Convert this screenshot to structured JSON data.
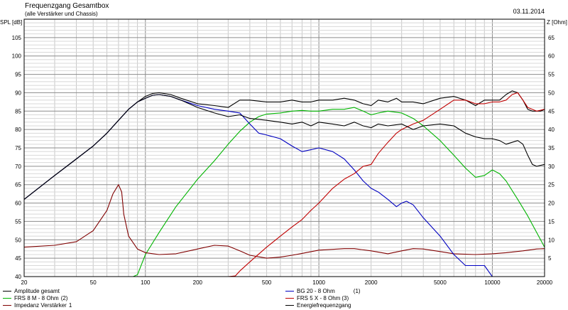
{
  "header": {
    "title": "Frequenzgang Gesamtbox",
    "subtitle": "(alle Verstärker und Chassis)",
    "date": "03.11.2014"
  },
  "chart_data": {
    "type": "line",
    "xscale": "log",
    "xlim": [
      20,
      20000
    ],
    "ylim_left": [
      40,
      110
    ],
    "ylim_right": [
      0,
      70
    ],
    "ylabel_left": "SPL [dB]",
    "ylabel_right": "Z [Ohm]",
    "x_ticks": [
      20,
      50,
      100,
      200,
      500,
      1000,
      2000,
      5000,
      10000,
      20000
    ],
    "y_ticks_left": [
      40,
      45,
      50,
      55,
      60,
      65,
      70,
      75,
      80,
      85,
      90,
      95,
      100,
      105
    ],
    "y_ticks_right": [
      5,
      10,
      15,
      20,
      25,
      30,
      35,
      40,
      45,
      50,
      55,
      60,
      65
    ],
    "grid": true,
    "series": [
      {
        "id": "s1",
        "name": "Amplitude gesamt",
        "color": "#000000",
        "axis": "left",
        "label_right": "",
        "points": [
          [
            20,
            61
          ],
          [
            30,
            67.5
          ],
          [
            40,
            72
          ],
          [
            50,
            75.5
          ],
          [
            60,
            79
          ],
          [
            70,
            82.5
          ],
          [
            80,
            85.5
          ],
          [
            90,
            87.5
          ],
          [
            100,
            89
          ],
          [
            110,
            89.8
          ],
          [
            120,
            90
          ],
          [
            140,
            89.5
          ],
          [
            160,
            88.5
          ],
          [
            200,
            87
          ],
          [
            250,
            86.5
          ],
          [
            300,
            86
          ],
          [
            350,
            88
          ],
          [
            400,
            88
          ],
          [
            500,
            87.5
          ],
          [
            600,
            87.5
          ],
          [
            700,
            88
          ],
          [
            800,
            87.5
          ],
          [
            900,
            87.5
          ],
          [
            1000,
            88
          ],
          [
            1200,
            88
          ],
          [
            1400,
            88.5
          ],
          [
            1600,
            88
          ],
          [
            1800,
            87
          ],
          [
            2000,
            86.5
          ],
          [
            2200,
            88
          ],
          [
            2500,
            87.5
          ],
          [
            2800,
            88.5
          ],
          [
            3000,
            87.5
          ],
          [
            3500,
            87.5
          ],
          [
            4000,
            87
          ],
          [
            5000,
            88.5
          ],
          [
            6000,
            89
          ],
          [
            7000,
            88
          ],
          [
            8000,
            86.5
          ],
          [
            9000,
            88
          ],
          [
            10000,
            88
          ],
          [
            11000,
            88
          ],
          [
            12000,
            89.5
          ],
          [
            13000,
            90.5
          ],
          [
            14000,
            90
          ],
          [
            15000,
            88
          ],
          [
            16000,
            85.5
          ],
          [
            17000,
            85
          ],
          [
            18000,
            85
          ],
          [
            19000,
            85
          ],
          [
            20000,
            85.5
          ]
        ]
      },
      {
        "id": "s2",
        "name": "FRS 8 M - 8 Ohm",
        "color": "#00b400",
        "axis": "left",
        "label_right": "(2)",
        "points": [
          [
            20,
            40
          ],
          [
            30,
            40
          ],
          [
            40,
            40
          ],
          [
            50,
            40
          ],
          [
            60,
            40
          ],
          [
            70,
            40
          ],
          [
            80,
            40
          ],
          [
            85,
            40
          ],
          [
            90,
            40.5
          ],
          [
            100,
            46
          ],
          [
            120,
            52
          ],
          [
            150,
            59
          ],
          [
            200,
            66.5
          ],
          [
            250,
            71.5
          ],
          [
            300,
            76
          ],
          [
            350,
            79.5
          ],
          [
            400,
            82
          ],
          [
            450,
            83.5
          ],
          [
            500,
            84.2
          ],
          [
            600,
            84.5
          ],
          [
            700,
            85
          ],
          [
            800,
            85.2
          ],
          [
            900,
            85
          ],
          [
            1000,
            85
          ],
          [
            1200,
            85.5
          ],
          [
            1400,
            85.5
          ],
          [
            1600,
            86
          ],
          [
            1800,
            85
          ],
          [
            2000,
            84
          ],
          [
            2200,
            84.5
          ],
          [
            2500,
            85
          ],
          [
            3000,
            84.5
          ],
          [
            3500,
            83
          ],
          [
            4000,
            81
          ],
          [
            5000,
            77
          ],
          [
            6000,
            73
          ],
          [
            7000,
            69.5
          ],
          [
            8000,
            67
          ],
          [
            9000,
            67.5
          ],
          [
            10000,
            69
          ],
          [
            11000,
            68
          ],
          [
            12000,
            66
          ],
          [
            14000,
            61
          ],
          [
            16000,
            56.5
          ],
          [
            18000,
            52
          ],
          [
            20000,
            48
          ]
        ]
      },
      {
        "id": "s3",
        "name": "Impedanz Verstärker",
        "color": "#800000",
        "axis": "right",
        "label_right": "1",
        "points": [
          [
            20,
            8
          ],
          [
            30,
            8.5
          ],
          [
            40,
            9.5
          ],
          [
            50,
            12.5
          ],
          [
            60,
            18
          ],
          [
            65,
            22.5
          ],
          [
            70,
            25
          ],
          [
            73,
            23
          ],
          [
            75,
            17
          ],
          [
            80,
            11
          ],
          [
            90,
            7.5
          ],
          [
            100,
            6.5
          ],
          [
            120,
            6
          ],
          [
            150,
            6.2
          ],
          [
            200,
            7.5
          ],
          [
            250,
            8.5
          ],
          [
            300,
            8.3
          ],
          [
            350,
            7
          ],
          [
            400,
            5.8
          ],
          [
            500,
            5
          ],
          [
            600,
            5.3
          ],
          [
            700,
            5.8
          ],
          [
            800,
            6.3
          ],
          [
            1000,
            7.2
          ],
          [
            1200,
            7.4
          ],
          [
            1400,
            7.6
          ],
          [
            1600,
            7.6
          ],
          [
            2000,
            7
          ],
          [
            2500,
            6.2
          ],
          [
            3000,
            7
          ],
          [
            3500,
            7.6
          ],
          [
            4000,
            7.5
          ],
          [
            5000,
            6.8
          ],
          [
            6000,
            6.2
          ],
          [
            8000,
            6
          ],
          [
            10000,
            6.2
          ],
          [
            12000,
            6.5
          ],
          [
            15000,
            7
          ],
          [
            18000,
            7.5
          ],
          [
            20000,
            7.6
          ]
        ]
      },
      {
        "id": "s4",
        "name": "BG 20 - 8 Ohm",
        "color": "#0000c0",
        "axis": "left",
        "label_right": "(1)",
        "points": [
          [
            20,
            61
          ],
          [
            30,
            67.5
          ],
          [
            40,
            72
          ],
          [
            50,
            75.5
          ],
          [
            60,
            79
          ],
          [
            70,
            82.5
          ],
          [
            80,
            85.5
          ],
          [
            90,
            87.5
          ],
          [
            100,
            88.5
          ],
          [
            110,
            89.3
          ],
          [
            120,
            89.5
          ],
          [
            140,
            89
          ],
          [
            160,
            88
          ],
          [
            200,
            86.5
          ],
          [
            250,
            85.5
          ],
          [
            300,
            85
          ],
          [
            350,
            84.5
          ],
          [
            400,
            81.5
          ],
          [
            450,
            79
          ],
          [
            500,
            78.5
          ],
          [
            600,
            77.5
          ],
          [
            700,
            75.5
          ],
          [
            800,
            74
          ],
          [
            900,
            74.5
          ],
          [
            1000,
            75
          ],
          [
            1200,
            74
          ],
          [
            1400,
            72
          ],
          [
            1600,
            69
          ],
          [
            1800,
            66
          ],
          [
            2000,
            64
          ],
          [
            2200,
            63
          ],
          [
            2500,
            61
          ],
          [
            2800,
            59
          ],
          [
            3000,
            60
          ],
          [
            3200,
            60.5
          ],
          [
            3500,
            59.5
          ],
          [
            4000,
            56
          ],
          [
            5000,
            51
          ],
          [
            6000,
            46
          ],
          [
            7000,
            43
          ],
          [
            8000,
            43
          ],
          [
            9000,
            43
          ],
          [
            10000,
            40
          ]
        ]
      },
      {
        "id": "s5",
        "name": "FRS 5 X - 8 Ohm",
        "color": "#c00000",
        "axis": "left",
        "label_right": "(3)",
        "points": [
          [
            20,
            40
          ],
          [
            100,
            40
          ],
          [
            200,
            40
          ],
          [
            300,
            40
          ],
          [
            330,
            40.2
          ],
          [
            350,
            41.5
          ],
          [
            400,
            44
          ],
          [
            500,
            48
          ],
          [
            600,
            51
          ],
          [
            700,
            53.5
          ],
          [
            800,
            55.5
          ],
          [
            900,
            58
          ],
          [
            1000,
            60
          ],
          [
            1200,
            64
          ],
          [
            1400,
            66.5
          ],
          [
            1600,
            68
          ],
          [
            1800,
            70
          ],
          [
            2000,
            70.5
          ],
          [
            2200,
            73.5
          ],
          [
            2500,
            76.5
          ],
          [
            2800,
            79
          ],
          [
            3000,
            80
          ],
          [
            3500,
            81.5
          ],
          [
            4000,
            82.5
          ],
          [
            5000,
            85.5
          ],
          [
            6000,
            88
          ],
          [
            7000,
            88
          ],
          [
            8000,
            87
          ],
          [
            9000,
            87
          ],
          [
            10000,
            87.5
          ],
          [
            11000,
            87.5
          ],
          [
            12000,
            88
          ],
          [
            13000,
            89.5
          ],
          [
            14000,
            90
          ],
          [
            15000,
            88
          ],
          [
            16000,
            86
          ],
          [
            18000,
            85
          ],
          [
            20000,
            85.5
          ]
        ]
      },
      {
        "id": "s6",
        "name": "Energiefrequenzgang",
        "color": "#000000",
        "axis": "left",
        "label_right": "",
        "points": [
          [
            20,
            61
          ],
          [
            30,
            67.5
          ],
          [
            40,
            72
          ],
          [
            50,
            75.5
          ],
          [
            60,
            79
          ],
          [
            70,
            82.5
          ],
          [
            80,
            85.5
          ],
          [
            90,
            87.5
          ],
          [
            100,
            88.5
          ],
          [
            110,
            89.3
          ],
          [
            120,
            89.5
          ],
          [
            140,
            89
          ],
          [
            160,
            88
          ],
          [
            200,
            86
          ],
          [
            250,
            84.5
          ],
          [
            300,
            83.5
          ],
          [
            350,
            84
          ],
          [
            400,
            83
          ],
          [
            500,
            82.5
          ],
          [
            600,
            82
          ],
          [
            700,
            81.5
          ],
          [
            800,
            82
          ],
          [
            900,
            81
          ],
          [
            1000,
            82
          ],
          [
            1200,
            81.5
          ],
          [
            1400,
            81
          ],
          [
            1600,
            82
          ],
          [
            1800,
            81
          ],
          [
            2000,
            80.5
          ],
          [
            2200,
            81.5
          ],
          [
            2500,
            81
          ],
          [
            3000,
            81.5
          ],
          [
            3500,
            80
          ],
          [
            4000,
            81
          ],
          [
            5000,
            81.5
          ],
          [
            6000,
            81
          ],
          [
            7000,
            79
          ],
          [
            8000,
            78
          ],
          [
            9000,
            77.5
          ],
          [
            10000,
            77.5
          ],
          [
            11000,
            77
          ],
          [
            12000,
            76
          ],
          [
            13000,
            76.5
          ],
          [
            14000,
            77
          ],
          [
            15000,
            76
          ],
          [
            16000,
            73
          ],
          [
            17000,
            70.5
          ],
          [
            18000,
            70
          ],
          [
            20000,
            70.5
          ]
        ]
      }
    ]
  }
}
